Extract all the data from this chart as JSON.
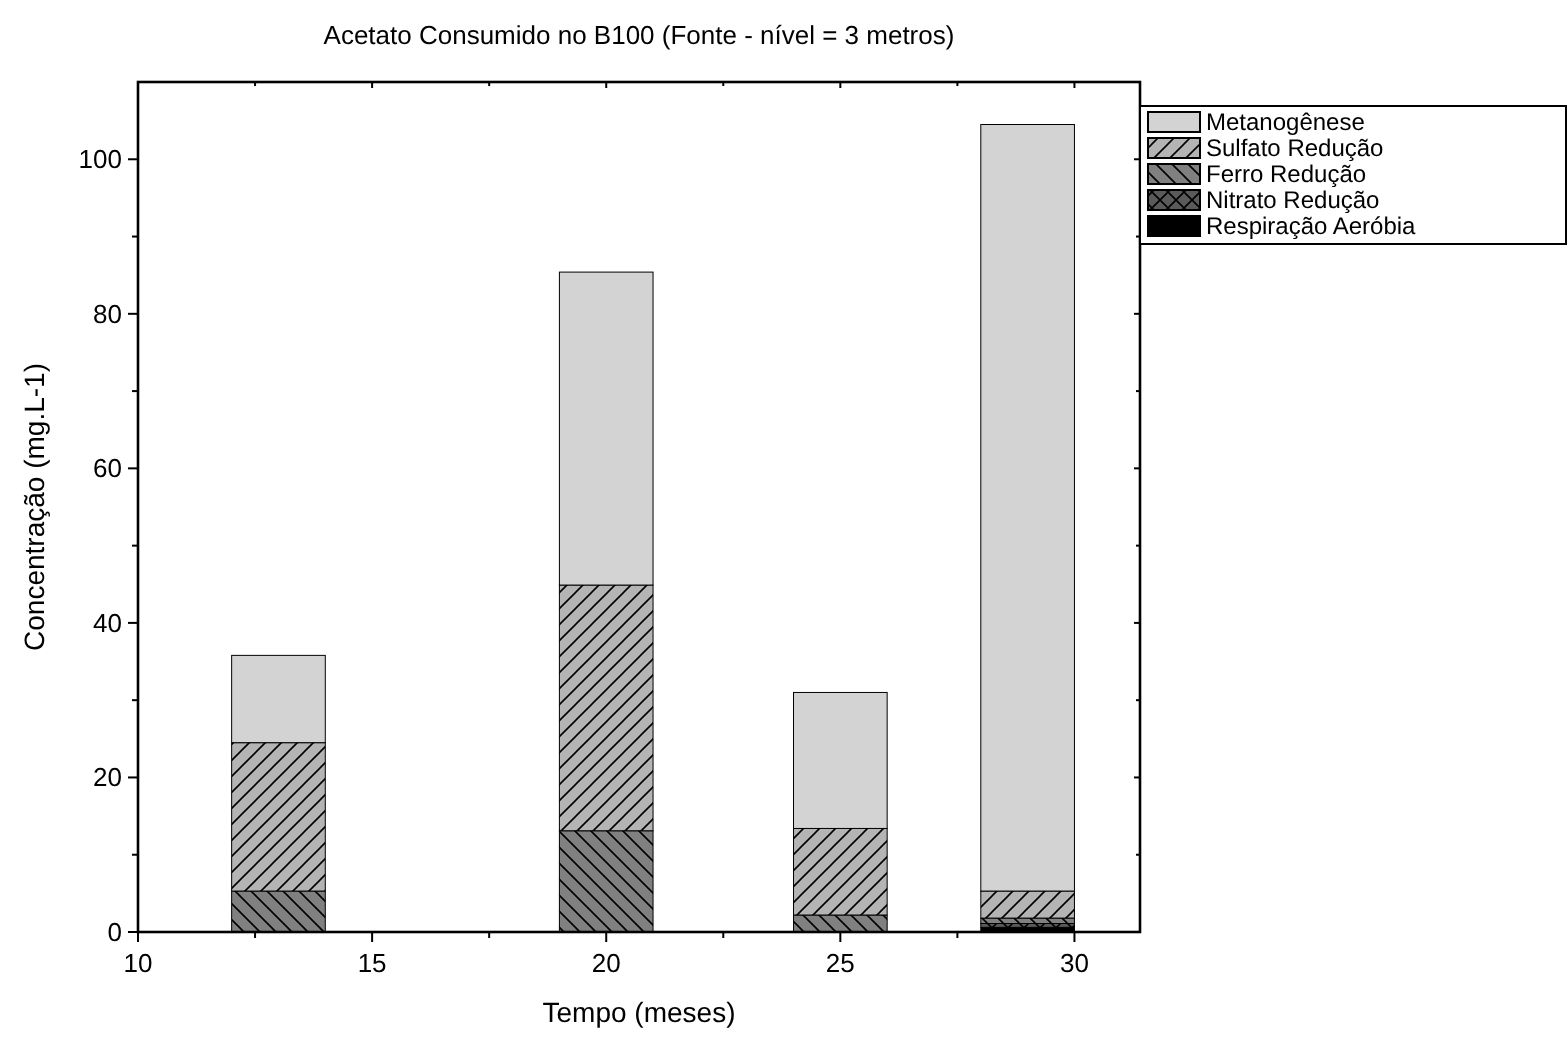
{
  "chart_data": {
    "type": "bar",
    "stacked": true,
    "title": "Acetato Consumido no B100 (Fonte - nível = 3 metros)",
    "xlabel": "Tempo (meses)",
    "ylabel": "Concentração (mg.L-1)",
    "x": [
      13,
      20,
      25,
      29
    ],
    "series": [
      {
        "name": "Respiração Aeróbia",
        "color": "#000000",
        "values": [
          null,
          null,
          null,
          0.6
        ]
      },
      {
        "name": "Nitrato Redução",
        "color": "#5a5a5a",
        "values": [
          null,
          null,
          null,
          0.5
        ]
      },
      {
        "name": "Ferro Redução",
        "color": "#808080",
        "values": [
          5.3,
          13.1,
          2.2,
          0.7
        ]
      },
      {
        "name": "Sulfato Redução",
        "color": "#b4b4b4",
        "values": [
          19.2,
          31.8,
          11.2,
          3.5
        ]
      },
      {
        "name": "Metanogênese",
        "color": "#d3d3d3",
        "values": [
          11.3,
          40.5,
          17.6,
          99.2
        ]
      }
    ],
    "xlim": [
      10,
      31.4
    ],
    "xticks": [
      10,
      {
        "value": 12.5,
        "label": null
      },
      15,
      {
        "value": 17.5,
        "label": null
      },
      20,
      {
        "value": 22.5,
        "label": null
      },
      25,
      {
        "value": 27.5,
        "label": null
      },
      30
    ],
    "ylim": [
      0,
      110
    ],
    "yticks": [
      0,
      {
        "value": 10,
        "label": null
      },
      20,
      {
        "value": 30,
        "label": null
      },
      40,
      {
        "value": 50,
        "label": null
      },
      60,
      {
        "value": 70,
        "label": null
      },
      80,
      {
        "value": 90,
        "label": null
      },
      100
    ],
    "legend": "top right",
    "grid": false
  }
}
